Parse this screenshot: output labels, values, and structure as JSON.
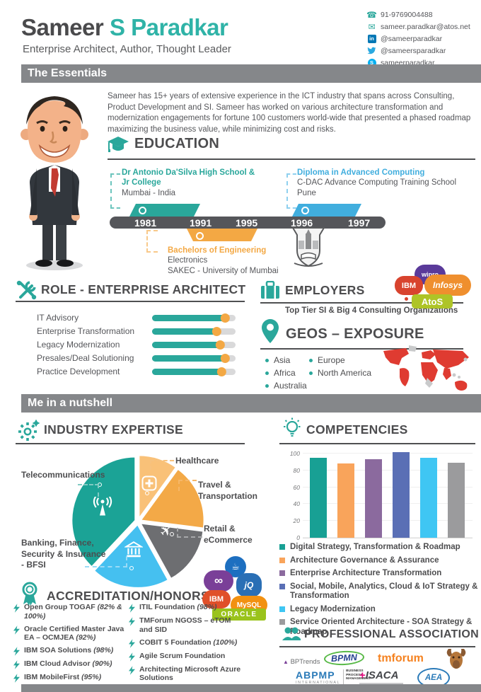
{
  "colors": {
    "accent_teal": "#2aa79b",
    "accent_orange": "#f3a844",
    "accent_blue": "#41aede",
    "banner_gray": "#85878a",
    "dark_text": "#4d4d4f"
  },
  "header": {
    "name_primary": "Sameer",
    "name_accent": "S Paradkar",
    "subtitle": "Enterprise Architect, Author, Thought Leader",
    "contacts": [
      {
        "icon": "phone-icon",
        "text": "91-9769004488"
      },
      {
        "icon": "email-icon",
        "text": "sameer.paradkar@atos.net"
      },
      {
        "icon": "linkedin-icon",
        "text": "@sameerparadkar"
      },
      {
        "icon": "twitter-icon",
        "text": "@sameersparadkar"
      },
      {
        "icon": "skype-icon",
        "text": "sameerparadkar"
      }
    ]
  },
  "banner_essentials": "The Essentials",
  "banner_nutshell": "Me in a nutshell",
  "bio": "Sameer has 15+ years of extensive experience in the ICT industry that spans across Consulting, Product Development and SI. Sameer has worked on various architecture transformation and modernization engagements for fortune 100 customers world-wide that presented a phased roadmap maximizing the business value, while minimizing cost and risks.",
  "education": {
    "title": "EDUCATION",
    "timeline_years": [
      "1981",
      "1991",
      "1995",
      "1996",
      "1997"
    ],
    "entries": [
      {
        "name": "Dr Antonio Da'Silva High School & Jr College",
        "line2": "Mumbai - India",
        "color": "#2aa79b",
        "span": "1981-1991"
      },
      {
        "name": "Diploma in Advanced Computing",
        "line2": "C-DAC Advance Computing Training School",
        "line3": "Pune",
        "color": "#41aede",
        "span": "1996-1997"
      },
      {
        "name": "Bachelors of Engineering",
        "line2": "Electronics",
        "line3": "SAKEC - University of Mumbai",
        "color": "#f3a844",
        "span": "1991-1995"
      }
    ]
  },
  "role": {
    "title": "ROLE - ENTERPRISE ARCHITECT",
    "skills": [
      {
        "label": "IT Advisory",
        "value": 88
      },
      {
        "label": "Enterprise Transformation",
        "value": 78
      },
      {
        "label": "Legacy Modernization",
        "value": 82
      },
      {
        "label": "Presales/Deal Solutioning",
        "value": 88
      },
      {
        "label": "Practice Development",
        "value": 84
      }
    ]
  },
  "employers": {
    "title": "EMPLOYERS",
    "subtitle": "Top Tier SI & Big 4 Consulting Organizations",
    "logos": [
      {
        "name": "wipro"
      },
      {
        "name": "IBM"
      },
      {
        "name": "Infosys"
      },
      {
        "name": "AtoS"
      }
    ]
  },
  "geos": {
    "title": "GEOS – EXPOSURE",
    "regions": [
      "Asia",
      "Africa",
      "Australia",
      "Europe",
      "North America"
    ]
  },
  "industry": {
    "title": "INDUSTRY EXPERTISE"
  },
  "competencies": {
    "title": "COMPETENCIES"
  },
  "accreditation": {
    "title": "ACCREDITATION/HONORS",
    "left": [
      {
        "text": "Open Group TOGAF",
        "note": "(82% & 100%)"
      },
      {
        "text": "Oracle Certified Master Java EA – OCMJEA",
        "note": "(92%)"
      },
      {
        "text": "IBM SOA Solutions",
        "note": "(98%)"
      },
      {
        "text": "IBM Cloud Advisor",
        "note": "(90%)"
      },
      {
        "text": "IBM MobileFirst",
        "note": "(95%)"
      }
    ],
    "right": [
      {
        "text": "ITIL Foundation",
        "note": "(98%)"
      },
      {
        "text": "TMForum NGOSS – eTOM and SID",
        "note": ""
      },
      {
        "text": "COBIT 5 Foundation",
        "note": "(100%)"
      },
      {
        "text": "Agile Scrum Foundation",
        "note": ""
      },
      {
        "text": "Architecting Microsoft Azure Solutions",
        "note": ""
      }
    ],
    "tech_logos": [
      {
        "name": "Java"
      },
      {
        "name": "VS"
      },
      {
        "name": "jQ"
      },
      {
        "name": "IBM"
      },
      {
        "name": "MySQL"
      },
      {
        "name": "ORACLE"
      }
    ]
  },
  "association": {
    "title": "PROFESSIONAL ASSOCIATION",
    "logos": [
      {
        "name": "BPTrends"
      },
      {
        "name": "BPMN"
      },
      {
        "name": "tmforum"
      },
      {
        "name": "moose-emblem"
      },
      {
        "name": "ABPMP",
        "sub": "INTERNATIONAL",
        "sub2": "BUSINESS PROCESS MANAGEMENT"
      },
      {
        "name": "ISACA"
      },
      {
        "name": "AEA"
      }
    ]
  },
  "chart_data": [
    {
      "type": "pie",
      "title": "INDUSTRY EXPERTISE",
      "slices": [
        {
          "label": "Healthcare",
          "value": 10,
          "color": "#f9c178"
        },
        {
          "label": "Travel & Transportation",
          "value": 17,
          "color": "#f3a947"
        },
        {
          "label": "Retail & eCommerce",
          "value": 15,
          "color": "#6d6e71"
        },
        {
          "label": "Banking, Finance, Security & Insurance - BFSI",
          "value": 20,
          "color": "#45c0f0"
        },
        {
          "label": "Telecommunications",
          "value": 38,
          "color": "#1ba396"
        }
      ],
      "legend_position": "callout-labels"
    },
    {
      "type": "bar",
      "title": "COMPETENCIES",
      "categories": [
        "Digital Strategy, Transformation & Roadmap",
        "Architecture Governance & Assurance",
        "Enterprise Architecture Transformation",
        "Social, Mobile, Analytics, Cloud & IoT Strategy & Transformation",
        "Legacy Modernization",
        "Service Oriented Architecture - SOA Strategy & Roadmap"
      ],
      "values": [
        95,
        88,
        93,
        102,
        95,
        89
      ],
      "colors": [
        "#18a094",
        "#f9a45b",
        "#8b6a9e",
        "#5a6fb5",
        "#3fc6f3",
        "#9b9b9d"
      ],
      "ylim": [
        0,
        100
      ],
      "yticks": [
        0,
        20,
        40,
        60,
        80,
        100
      ],
      "grid": true,
      "legend_position": "bottom"
    }
  ]
}
